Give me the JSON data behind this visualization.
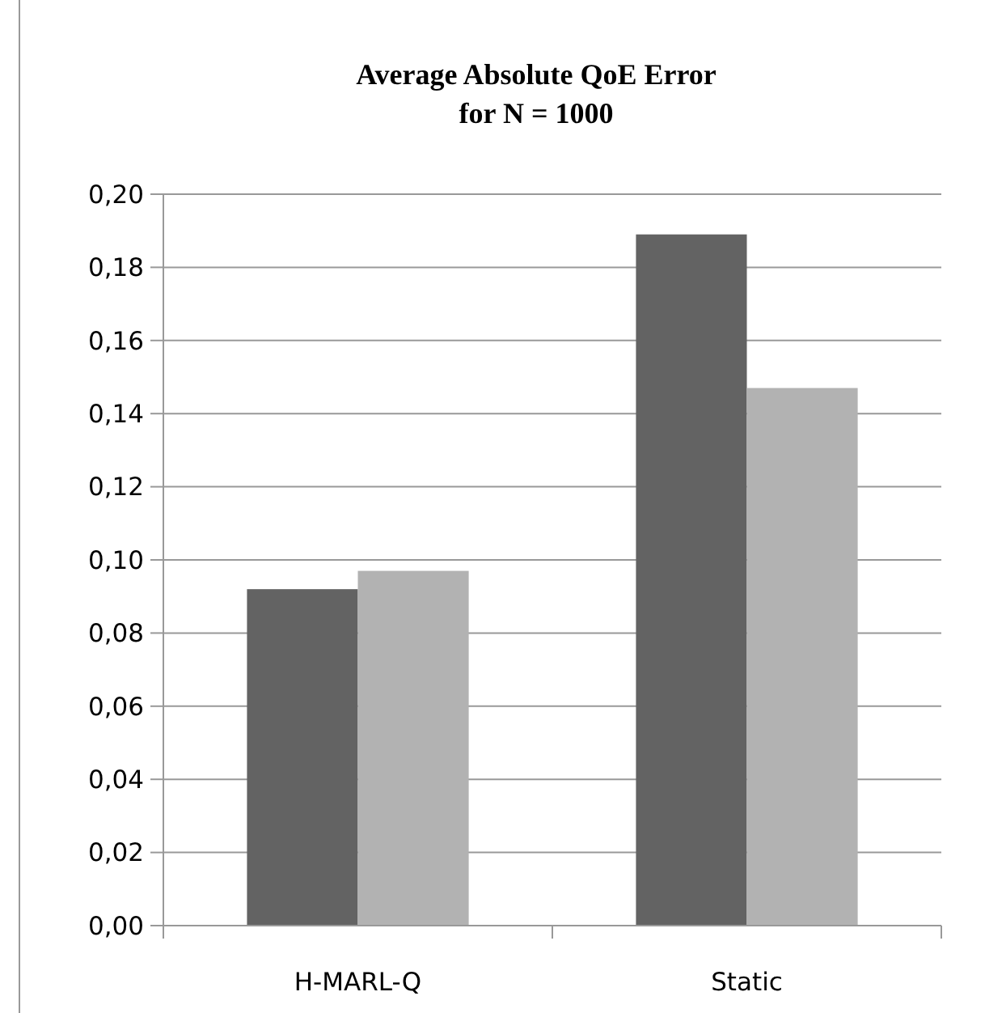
{
  "chart_data": {
    "type": "bar",
    "title": "Average Absolute QoE Error\nfor N = 1000",
    "categories": [
      "H-MARL-Q",
      "Static"
    ],
    "series": [
      {
        "color": "#636363",
        "values": [
          0.092,
          0.189
        ]
      },
      {
        "color": "#b2b2b2",
        "values": [
          0.097,
          0.147
        ]
      }
    ],
    "ylim": [
      0,
      0.2
    ],
    "yticks": [
      {
        "value": 0,
        "label": "0,00"
      },
      {
        "value": 0.02,
        "label": "0,02"
      },
      {
        "value": 0.04,
        "label": "0,04"
      },
      {
        "value": 0.06,
        "label": "0,06"
      },
      {
        "value": 0.08,
        "label": "0,08"
      },
      {
        "value": 0.1,
        "label": "0,10"
      },
      {
        "value": 0.12,
        "label": "0,12"
      },
      {
        "value": 0.14,
        "label": "0,14"
      },
      {
        "value": 0.16,
        "label": "0,16"
      },
      {
        "value": 0.18,
        "label": "0,18"
      },
      {
        "value": 0.2,
        "label": "0,20"
      }
    ],
    "grid": true
  }
}
